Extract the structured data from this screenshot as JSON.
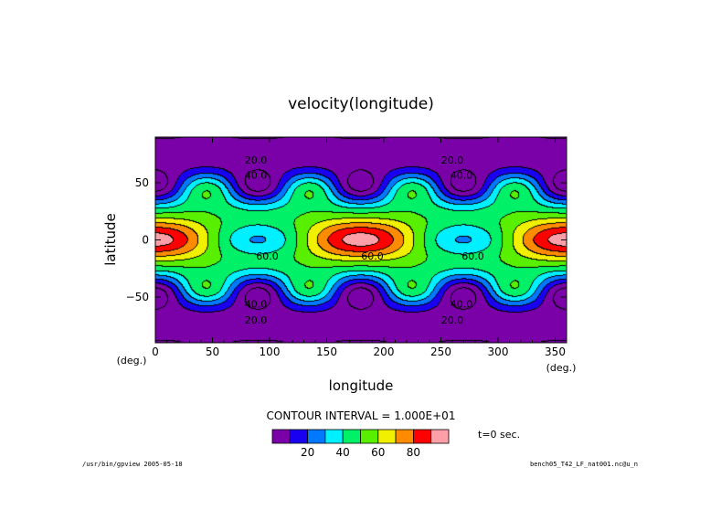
{
  "chart_data": {
    "type": "heatmap",
    "title": "velocity(longitude)",
    "xlabel": "longitude",
    "ylabel": "latitude",
    "x_unit": "(deg.)",
    "y_unit": "(deg.)",
    "xlim": [
      0,
      360
    ],
    "ylim": [
      -90,
      90
    ],
    "x_ticks": [
      0,
      50,
      100,
      150,
      200,
      250,
      300,
      350
    ],
    "y_ticks": [
      -50,
      0,
      50
    ],
    "contour_interval_text": "CONTOUR INTERVAL = 1.000E+01",
    "time_text": "t=0 sec.",
    "levels": [
      0,
      10,
      20,
      30,
      40,
      50,
      60,
      70,
      80,
      90,
      100
    ],
    "colorbar_ticks": [
      20,
      40,
      60,
      80
    ],
    "colors": [
      "#7a00a8",
      "#1a00f0",
      "#0078ff",
      "#00f0ff",
      "#00f068",
      "#58f000",
      "#f0f000",
      "#ff8c00",
      "#ff0000",
      "#ffa0a8"
    ],
    "contour_labels": [
      {
        "text": "20.0",
        "lon": 88,
        "lat": 70
      },
      {
        "text": "40.0",
        "lon": 88,
        "lat": 57
      },
      {
        "text": "60.0",
        "lon": 98,
        "lat": -14
      },
      {
        "text": "20.0",
        "lon": 260,
        "lat": 70
      },
      {
        "text": "40.0",
        "lon": 268,
        "lat": 57
      },
      {
        "text": "60.0",
        "lon": 190,
        "lat": -14
      },
      {
        "text": "60.0",
        "lon": 278,
        "lat": -14
      },
      {
        "text": "40.0",
        "lon": 88,
        "lat": -56
      },
      {
        "text": "20.0",
        "lon": 88,
        "lat": -70
      },
      {
        "text": "40.0",
        "lon": 268,
        "lat": -56
      },
      {
        "text": "20.0",
        "lon": 260,
        "lat": -70
      }
    ]
  },
  "footer": {
    "left": "/usr/bin/gpview  2005-05-18",
    "right": "bench05_T42_LF_nat001.nc@u_n"
  }
}
